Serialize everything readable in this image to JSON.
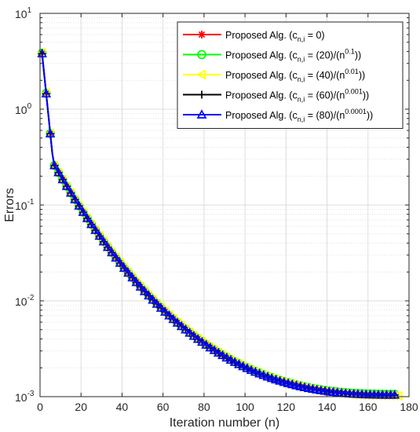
{
  "chart_data": {
    "type": "line",
    "xlabel": "Iteration number (n)",
    "ylabel": "Errors",
    "xlim": [
      0,
      180
    ],
    "ylim": [
      0.001,
      10
    ],
    "yscale": "log",
    "x_ticks": [
      "0",
      "20",
      "40",
      "60",
      "80",
      "100",
      "120",
      "140",
      "160",
      "180"
    ],
    "y_ticks": [
      {
        "base": "10",
        "exp": "-3"
      },
      {
        "base": "10",
        "exp": "-2"
      },
      {
        "base": "10",
        "exp": "-1"
      },
      {
        "base": "10",
        "exp": "0"
      },
      {
        "base": "10",
        "exp": "1"
      }
    ],
    "grid": true,
    "legend_position": "top-right",
    "series": [
      {
        "legend": [
          "Proposed Alg. (c",
          "n,i",
          " = 0)",
          "",
          ""
        ],
        "color": "#ff0000",
        "marker": "asterisk",
        "x_start": 1,
        "x_end": 174,
        "y_start": 3.8,
        "y_end": 0.00105
      },
      {
        "legend": [
          "Proposed  Alg. (c",
          "n,i",
          " = (20)/(n",
          "0.1",
          "))"
        ],
        "color": "#00ff00",
        "marker": "circle",
        "x_start": 1,
        "x_end": 174,
        "y_start": 3.85,
        "y_end": 0.00106
      },
      {
        "legend": [
          "Proposed  Alg. (c",
          "n,i",
          " = (40)/(n",
          "0.01",
          "))"
        ],
        "color": "#ffff00",
        "marker": "triangle-left",
        "x_start": 1,
        "x_end": 176,
        "y_start": 3.9,
        "y_end": 0.00102
      },
      {
        "legend": [
          "Proposed  Alg. (c",
          "n,i",
          " = (60)/(n",
          "0.001",
          "))"
        ],
        "color": "#000000",
        "marker": "plus",
        "x_start": 1,
        "x_end": 174,
        "y_start": 3.8,
        "y_end": 0.00104
      },
      {
        "legend": [
          "Proposed  Alg. (c",
          "n,i",
          " = (80)/(n",
          "0.0001",
          "))"
        ],
        "color": "#0000ff",
        "marker": "triangle-up",
        "x_start": 1,
        "x_end": 174,
        "y_start": 3.8,
        "y_end": 0.00104
      }
    ]
  }
}
